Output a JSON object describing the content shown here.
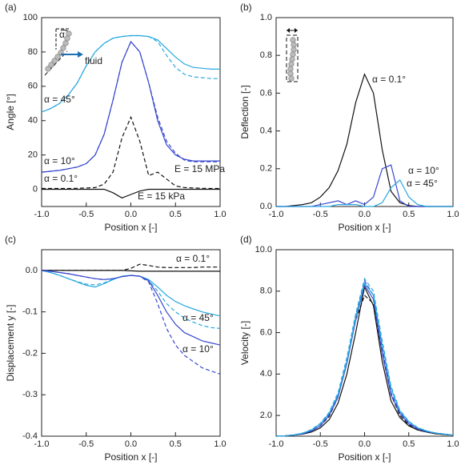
{
  "chart_data": [
    {
      "type": "line",
      "panel": "(a)",
      "x_label": "Position x [-]",
      "y_label": "Angle [°]",
      "xlim": [
        -1,
        1
      ],
      "ylim": [
        -10,
        100
      ],
      "xticks": [
        {
          "value": -1,
          "label": "-1.0"
        },
        {
          "value": -0.5,
          "label": "-0.5"
        },
        {
          "value": 0,
          "label": "0.0"
        },
        {
          "value": 0.5,
          "label": "0.5"
        },
        {
          "value": 1,
          "label": "1.0"
        }
      ],
      "yticks": [
        0,
        20,
        40,
        60,
        80,
        100
      ],
      "x": [
        -1,
        -0.9,
        -0.8,
        -0.7,
        -0.6,
        -0.5,
        -0.4,
        -0.3,
        -0.2,
        -0.1,
        0,
        0.1,
        0.2,
        0.3,
        0.4,
        0.5,
        0.6,
        0.7,
        0.8,
        0.9,
        1
      ],
      "series": [
        {
          "color": "#29a8e0",
          "style": "solid",
          "values": [
            45,
            47,
            50,
            55,
            62,
            72,
            80,
            85,
            88,
            89,
            89.5,
            89.5,
            89,
            87,
            82,
            77,
            73,
            71,
            70.5,
            70,
            70
          ]
        },
        {
          "color": "#29a8e0",
          "style": "dashed",
          "values": [
            45,
            47,
            50,
            55,
            62,
            72,
            80,
            85,
            88,
            89,
            89.5,
            89.5,
            89,
            86,
            78,
            71,
            67,
            65.5,
            65,
            64.5,
            64.5
          ]
        },
        {
          "color": "#3848d0",
          "style": "solid",
          "values": [
            10,
            10.5,
            11,
            12,
            13,
            15,
            20,
            32,
            52,
            74,
            86,
            80,
            62,
            40,
            26,
            20,
            17.5,
            16.5,
            16.5,
            16.5,
            16.5
          ]
        },
        {
          "color": "#3848d0",
          "style": "dashed",
          "values": [
            10,
            10.5,
            11,
            12,
            13,
            15,
            20,
            32,
            52,
            74,
            86,
            80,
            62,
            42,
            28,
            21,
            17,
            16,
            16,
            16,
            16
          ]
        },
        {
          "color": "#111111",
          "style": "dashed",
          "values": [
            0.5,
            0.5,
            0.5,
            0.5,
            0.6,
            0.8,
            1,
            3,
            10,
            30,
            42,
            28,
            8,
            10,
            6,
            2,
            1,
            0.8,
            0.6,
            0.5,
            0.5
          ]
        },
        {
          "color": "#111111",
          "style": "solid",
          "values": [
            0,
            0,
            0,
            0,
            0,
            0,
            0,
            0,
            -2,
            -5,
            -3,
            -1,
            0,
            0,
            0,
            0,
            0,
            0,
            0,
            0,
            0
          ]
        }
      ],
      "annotations": [
        {
          "text": "α = 45°",
          "color": "#29a8e0"
        },
        {
          "text": "α = 10°",
          "color": "#3848d0"
        },
        {
          "text": "α = 0.1°",
          "color": "#111111"
        },
        {
          "text": "E = 15 MPa",
          "color": "#111111"
        },
        {
          "text": "E = 15 kPa",
          "color": "#111111"
        },
        {
          "text": "α",
          "color": "#111111"
        },
        {
          "text": "fluid",
          "color": "#1f6fb5"
        }
      ]
    },
    {
      "type": "line",
      "panel": "(b)",
      "x_label": "Position x [-]",
      "y_label": "Deflection [-]",
      "xlim": [
        -1,
        1
      ],
      "ylim": [
        0,
        1
      ],
      "xticks": [
        {
          "value": -1,
          "label": "-1.0"
        },
        {
          "value": -0.5,
          "label": "-0.5"
        },
        {
          "value": 0,
          "label": "0.0"
        },
        {
          "value": 0.5,
          "label": "0.5"
        },
        {
          "value": 1,
          "label": "1.0"
        }
      ],
      "yticks": [
        {
          "value": 0,
          "label": "0.0"
        },
        0.2,
        0.4,
        0.6,
        0.8,
        {
          "value": 1,
          "label": "1.0"
        }
      ],
      "x": [
        -1,
        -0.9,
        -0.8,
        -0.7,
        -0.6,
        -0.5,
        -0.4,
        -0.3,
        -0.2,
        -0.1,
        0,
        0.1,
        0.2,
        0.3,
        0.4,
        0.5,
        0.6,
        0.7,
        0.8,
        0.9,
        1
      ],
      "series": [
        {
          "color": "#111111",
          "style": "solid",
          "values": [
            0,
            0,
            0.005,
            0.01,
            0.02,
            0.05,
            0.1,
            0.19,
            0.33,
            0.55,
            0.7,
            0.6,
            0.3,
            0.08,
            0.02,
            0.005,
            0,
            0,
            0,
            0,
            0
          ]
        },
        {
          "color": "#3848d0",
          "style": "solid",
          "values": [
            0,
            0,
            0,
            0,
            0,
            0.01,
            0.02,
            0.03,
            0.01,
            0.03,
            0.01,
            0.05,
            0.2,
            0.22,
            0.03,
            0,
            0,
            0,
            0,
            0,
            0
          ]
        },
        {
          "color": "#29a8e0",
          "style": "solid",
          "values": [
            0,
            0,
            0,
            0,
            0,
            0,
            0,
            0.01,
            0.01,
            0.01,
            0,
            0,
            0.02,
            0.1,
            0.14,
            0.05,
            0.01,
            0,
            0,
            0,
            0
          ]
        }
      ],
      "annotations": [
        {
          "text": "α = 0.1°",
          "color": "#111111"
        },
        {
          "text": "α = 10°",
          "color": "#3848d0"
        },
        {
          "text": "α = 45°",
          "color": "#29a8e0"
        }
      ]
    },
    {
      "type": "line",
      "panel": "(c)",
      "x_label": "Position x [-]",
      "y_label": "Displacement y [-]",
      "xlim": [
        -1,
        1
      ],
      "ylim": [
        -0.4,
        0.05
      ],
      "xticks": [
        {
          "value": -1,
          "label": "-1.0"
        },
        {
          "value": -0.5,
          "label": "-0.5"
        },
        {
          "value": 0,
          "label": "0.0"
        },
        {
          "value": 0.5,
          "label": "0.5"
        },
        {
          "value": 1,
          "label": "1.0"
        }
      ],
      "yticks": [
        {
          "value": -0.4,
          "label": "-0.4"
        },
        {
          "value": -0.3,
          "label": "-0.3"
        },
        {
          "value": -0.2,
          "label": "-0.2"
        },
        {
          "value": -0.1,
          "label": "-0.1"
        },
        {
          "value": 0,
          "label": "0.0"
        }
      ],
      "x": [
        -1,
        -0.9,
        -0.8,
        -0.7,
        -0.6,
        -0.5,
        -0.4,
        -0.3,
        -0.2,
        -0.1,
        0,
        0.1,
        0.2,
        0.3,
        0.4,
        0.5,
        0.6,
        0.7,
        0.8,
        0.9,
        1
      ],
      "series": [
        {
          "color": "#111111",
          "style": "dashed",
          "values": [
            0,
            0,
            0,
            0,
            0,
            0,
            0,
            0,
            0,
            0,
            0.005,
            0.015,
            0.012,
            0.008,
            0.007,
            0.007,
            0.007,
            0.007,
            0.008,
            0.008,
            0.008
          ]
        },
        {
          "color": "#111111",
          "style": "solid",
          "values": [
            0,
            0,
            0,
            0,
            0,
            0,
            0,
            0,
            0,
            0,
            -0.001,
            -0.002,
            -0.002,
            -0.002,
            -0.002,
            -0.002,
            -0.002,
            -0.002,
            -0.002,
            -0.002,
            -0.002
          ]
        },
        {
          "color": "#29a8e0",
          "style": "solid",
          "values": [
            0,
            -0.005,
            -0.012,
            -0.02,
            -0.028,
            -0.036,
            -0.04,
            -0.032,
            -0.022,
            -0.014,
            -0.012,
            -0.014,
            -0.022,
            -0.04,
            -0.06,
            -0.075,
            -0.085,
            -0.093,
            -0.1,
            -0.105,
            -0.11
          ]
        },
        {
          "color": "#29a8e0",
          "style": "dashed",
          "values": [
            0,
            -0.005,
            -0.012,
            -0.02,
            -0.027,
            -0.033,
            -0.035,
            -0.03,
            -0.021,
            -0.014,
            -0.012,
            -0.014,
            -0.024,
            -0.05,
            -0.08,
            -0.1,
            -0.115,
            -0.125,
            -0.133,
            -0.138,
            -0.14
          ]
        },
        {
          "color": "#3848d0",
          "style": "solid",
          "values": [
            0,
            -0.002,
            -0.005,
            -0.008,
            -0.012,
            -0.016,
            -0.02,
            -0.022,
            -0.02,
            -0.015,
            -0.012,
            -0.014,
            -0.025,
            -0.06,
            -0.1,
            -0.13,
            -0.15,
            -0.16,
            -0.17,
            -0.175,
            -0.18
          ]
        },
        {
          "color": "#3848d0",
          "style": "dashed",
          "values": [
            0,
            -0.002,
            -0.005,
            -0.008,
            -0.012,
            -0.016,
            -0.02,
            -0.022,
            -0.02,
            -0.015,
            -0.012,
            -0.014,
            -0.028,
            -0.08,
            -0.14,
            -0.18,
            -0.205,
            -0.22,
            -0.235,
            -0.243,
            -0.25
          ]
        }
      ],
      "annotations": [
        {
          "text": "α = 0.1°",
          "color": "#111111"
        },
        {
          "text": "α = 45°",
          "color": "#29a8e0"
        },
        {
          "text": "α = 10°",
          "color": "#3848d0"
        }
      ]
    },
    {
      "type": "line",
      "panel": "(d)",
      "x_label": "Position x [-]",
      "y_label": "Velocity [-]",
      "xlim": [
        -1,
        1
      ],
      "ylim": [
        1,
        10
      ],
      "xticks": [
        {
          "value": -1,
          "label": "-1.0"
        },
        {
          "value": -0.5,
          "label": "-0.5"
        },
        {
          "value": 0,
          "label": "0.0"
        },
        {
          "value": 0.5,
          "label": "0.5"
        },
        {
          "value": 1,
          "label": "1.0"
        }
      ],
      "yticks": [
        {
          "value": 2,
          "label": "2.0"
        },
        {
          "value": 4,
          "label": "4.0"
        },
        {
          "value": 6,
          "label": "6.0"
        },
        {
          "value": 8,
          "label": "8.0"
        },
        {
          "value": 10,
          "label": "10.0"
        }
      ],
      "x": [
        -1,
        -0.9,
        -0.8,
        -0.7,
        -0.6,
        -0.5,
        -0.4,
        -0.3,
        -0.2,
        -0.1,
        0,
        0.1,
        0.2,
        0.3,
        0.4,
        0.5,
        0.6,
        0.7,
        0.8,
        0.9,
        1
      ],
      "series": [
        {
          "color": "#111111",
          "style": "solid",
          "values": [
            1,
            1.02,
            1.05,
            1.1,
            1.2,
            1.4,
            1.8,
            2.6,
            4,
            6,
            8.2,
            7.3,
            4.6,
            2.7,
            1.9,
            1.5,
            1.3,
            1.2,
            1.12,
            1.08,
            1.05
          ]
        },
        {
          "color": "#111111",
          "style": "dashed",
          "values": [
            1,
            1.02,
            1.06,
            1.12,
            1.25,
            1.5,
            1.95,
            2.9,
            4.6,
            6.6,
            7.8,
            7.4,
            5,
            3,
            2,
            1.55,
            1.3,
            1.2,
            1.12,
            1.08,
            1.05
          ]
        },
        {
          "color": "#3848d0",
          "style": "solid",
          "values": [
            1,
            1.02,
            1.05,
            1.12,
            1.25,
            1.5,
            2,
            2.9,
            4.5,
            6.6,
            8.3,
            7.6,
            5,
            3,
            2.1,
            1.6,
            1.35,
            1.22,
            1.15,
            1.1,
            1.05
          ]
        },
        {
          "color": "#3848d0",
          "style": "dashed",
          "values": [
            1,
            1.02,
            1.05,
            1.12,
            1.26,
            1.52,
            2.05,
            3,
            4.6,
            6.8,
            8.5,
            7.8,
            5.2,
            3.1,
            2.15,
            1.62,
            1.36,
            1.23,
            1.15,
            1.1,
            1.05
          ]
        },
        {
          "color": "#29a8e0",
          "style": "solid",
          "values": [
            1,
            1.02,
            1.06,
            1.14,
            1.3,
            1.6,
            2.1,
            3,
            4.6,
            6.7,
            8.4,
            7.8,
            5.4,
            3.3,
            2.2,
            1.7,
            1.4,
            1.25,
            1.15,
            1.1,
            1.05
          ]
        },
        {
          "color": "#29a8e0",
          "style": "dashed",
          "values": [
            1,
            1.02,
            1.06,
            1.15,
            1.32,
            1.62,
            2.15,
            3.1,
            4.8,
            6.9,
            8.6,
            8,
            5.6,
            3.4,
            2.25,
            1.72,
            1.42,
            1.26,
            1.16,
            1.1,
            1.05
          ]
        }
      ]
    }
  ]
}
